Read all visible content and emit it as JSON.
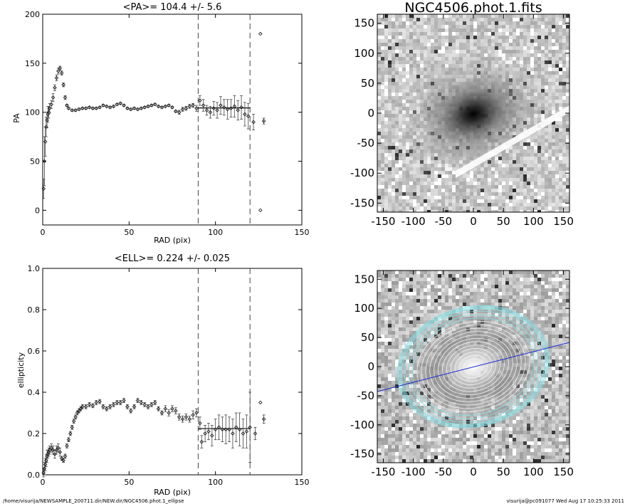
{
  "chart_data": [
    {
      "id": "pa",
      "type": "scatter",
      "title": "<PA>= 104.4 +/-   5.6",
      "xlabel": "RAD (pix)",
      "ylabel": "PA",
      "xlim": [
        0,
        150
      ],
      "ylim": [
        -15,
        200
      ],
      "xticks": [
        0,
        50,
        100,
        150
      ],
      "yticks": [
        0,
        50,
        100,
        150,
        200
      ],
      "vlines": [
        90,
        120
      ],
      "mean_segment": {
        "x": [
          90,
          120
        ],
        "y": 104.4
      },
      "series": [
        {
          "values": [
            {
              "x": 0.5,
              "y": 22,
              "err": 10
            },
            {
              "x": 1,
              "y": 50,
              "err": 25
            },
            {
              "x": 1.5,
              "y": 70,
              "err": 15
            },
            {
              "x": 2,
              "y": 85,
              "err": 10
            },
            {
              "x": 2.5,
              "y": 92,
              "err": 8
            },
            {
              "x": 3,
              "y": 98,
              "err": 8
            },
            {
              "x": 3.5,
              "y": 100,
              "err": 6
            },
            {
              "x": 4,
              "y": 104,
              "err": 5
            },
            {
              "x": 5,
              "y": 108,
              "err": 4
            },
            {
              "x": 6,
              "y": 115,
              "err": 4
            },
            {
              "x": 7,
              "y": 125,
              "err": 3
            },
            {
              "x": 8,
              "y": 135,
              "err": 3
            },
            {
              "x": 9,
              "y": 142,
              "err": 3
            },
            {
              "x": 10,
              "y": 145,
              "err": 2
            },
            {
              "x": 11,
              "y": 140,
              "err": 2
            },
            {
              "x": 12,
              "y": 128,
              "err": 2
            },
            {
              "x": 13,
              "y": 115,
              "err": 2
            },
            {
              "x": 14,
              "y": 107,
              "err": 1
            },
            {
              "x": 15,
              "y": 104,
              "err": 1
            },
            {
              "x": 17,
              "y": 102,
              "err": 1
            },
            {
              "x": 19,
              "y": 102,
              "err": 1
            },
            {
              "x": 21,
              "y": 103,
              "err": 1
            },
            {
              "x": 23,
              "y": 104,
              "err": 1
            },
            {
              "x": 25,
              "y": 104,
              "err": 1
            },
            {
              "x": 27,
              "y": 105,
              "err": 1
            },
            {
              "x": 29,
              "y": 104,
              "err": 1
            },
            {
              "x": 31,
              "y": 104,
              "err": 1
            },
            {
              "x": 33,
              "y": 105,
              "err": 1
            },
            {
              "x": 35,
              "y": 107,
              "err": 1
            },
            {
              "x": 37,
              "y": 106,
              "err": 1
            },
            {
              "x": 39,
              "y": 105,
              "err": 1
            },
            {
              "x": 41,
              "y": 106,
              "err": 1
            },
            {
              "x": 43,
              "y": 108,
              "err": 1
            },
            {
              "x": 45,
              "y": 109,
              "err": 1
            },
            {
              "x": 47,
              "y": 107,
              "err": 1
            },
            {
              "x": 49,
              "y": 104,
              "err": 1
            },
            {
              "x": 51,
              "y": 103,
              "err": 1
            },
            {
              "x": 53,
              "y": 104,
              "err": 1
            },
            {
              "x": 55,
              "y": 103,
              "err": 1
            },
            {
              "x": 57,
              "y": 104,
              "err": 1
            },
            {
              "x": 59,
              "y": 105,
              "err": 1
            },
            {
              "x": 61,
              "y": 106,
              "err": 1
            },
            {
              "x": 63,
              "y": 107,
              "err": 1
            },
            {
              "x": 65,
              "y": 108,
              "err": 1
            },
            {
              "x": 67,
              "y": 106,
              "err": 1
            },
            {
              "x": 69,
              "y": 105,
              "err": 1
            },
            {
              "x": 71,
              "y": 106,
              "err": 1
            },
            {
              "x": 73,
              "y": 107,
              "err": 1
            },
            {
              "x": 75,
              "y": 105,
              "err": 1
            },
            {
              "x": 77,
              "y": 101,
              "err": 1
            },
            {
              "x": 79,
              "y": 100,
              "err": 2
            },
            {
              "x": 81,
              "y": 103,
              "err": 2
            },
            {
              "x": 83,
              "y": 104,
              "err": 2
            },
            {
              "x": 85,
              "y": 106,
              "err": 2
            },
            {
              "x": 87,
              "y": 107,
              "err": 2
            },
            {
              "x": 89,
              "y": 104,
              "err": 3
            },
            {
              "x": 91,
              "y": 112,
              "err": 5
            },
            {
              "x": 93,
              "y": 107,
              "err": 6
            },
            {
              "x": 95,
              "y": 102,
              "err": 5
            },
            {
              "x": 97,
              "y": 100,
              "err": 6
            },
            {
              "x": 99,
              "y": 104,
              "err": 7
            },
            {
              "x": 101,
              "y": 102,
              "err": 8
            },
            {
              "x": 103,
              "y": 107,
              "err": 9
            },
            {
              "x": 105,
              "y": 105,
              "err": 8
            },
            {
              "x": 107,
              "y": 103,
              "err": 10
            },
            {
              "x": 109,
              "y": 104,
              "err": 9
            },
            {
              "x": 111,
              "y": 106,
              "err": 11
            },
            {
              "x": 113,
              "y": 102,
              "err": 10
            },
            {
              "x": 115,
              "y": 105,
              "err": 12
            },
            {
              "x": 117,
              "y": 98,
              "err": 12
            },
            {
              "x": 119,
              "y": 96,
              "err": 13
            },
            {
              "x": 122,
              "y": 90,
              "err": 8
            },
            {
              "x": 126,
              "y": 180,
              "err": 0
            },
            {
              "x": 126,
              "y": 0,
              "err": 0
            },
            {
              "x": 128,
              "y": 91,
              "err": 3
            }
          ]
        }
      ]
    },
    {
      "id": "ell",
      "type": "scatter",
      "title": "<ELL>= 0.224 +/-  0.025",
      "xlabel": "RAD (pix)",
      "ylabel": "ellipticity",
      "xlim": [
        0,
        150
      ],
      "ylim": [
        0,
        1
      ],
      "xticks": [
        0,
        50,
        100,
        150
      ],
      "yticks": [
        0,
        0.2,
        0.4,
        0.6,
        0.8,
        1.0
      ],
      "ytick_labels": [
        "0.0",
        "0.2",
        "0.4",
        "0.6",
        "0.8",
        "1.0"
      ],
      "vlines": [
        90,
        120
      ],
      "mean_segment": {
        "x": [
          90,
          120
        ],
        "y": 0.224
      },
      "series": [
        {
          "values": [
            {
              "x": 0.5,
              "y": 0.01,
              "err": 0.02
            },
            {
              "x": 1,
              "y": 0.03,
              "err": 0.03
            },
            {
              "x": 1.5,
              "y": 0.05,
              "err": 0.03
            },
            {
              "x": 2,
              "y": 0.07,
              "err": 0.03
            },
            {
              "x": 2.5,
              "y": 0.09,
              "err": 0.03
            },
            {
              "x": 3,
              "y": 0.1,
              "err": 0.02
            },
            {
              "x": 3.5,
              "y": 0.11,
              "err": 0.02
            },
            {
              "x": 4,
              "y": 0.12,
              "err": 0.02
            },
            {
              "x": 5,
              "y": 0.13,
              "err": 0.02
            },
            {
              "x": 6,
              "y": 0.12,
              "err": 0.02
            },
            {
              "x": 7,
              "y": 0.1,
              "err": 0.02
            },
            {
              "x": 8,
              "y": 0.12,
              "err": 0.02
            },
            {
              "x": 9,
              "y": 0.13,
              "err": 0.02
            },
            {
              "x": 10,
              "y": 0.11,
              "err": 0.02
            },
            {
              "x": 11,
              "y": 0.08,
              "err": 0.01
            },
            {
              "x": 12,
              "y": 0.07,
              "err": 0.01
            },
            {
              "x": 13,
              "y": 0.09,
              "err": 0.01
            },
            {
              "x": 14,
              "y": 0.14,
              "err": 0.01
            },
            {
              "x": 15,
              "y": 0.17,
              "err": 0.01
            },
            {
              "x": 16,
              "y": 0.2,
              "err": 0.01
            },
            {
              "x": 17,
              "y": 0.23,
              "err": 0.01
            },
            {
              "x": 18,
              "y": 0.26,
              "err": 0.01
            },
            {
              "x": 19,
              "y": 0.28,
              "err": 0.01
            },
            {
              "x": 20,
              "y": 0.3,
              "err": 0.01
            },
            {
              "x": 21,
              "y": 0.31,
              "err": 0.01
            },
            {
              "x": 22,
              "y": 0.32,
              "err": 0.01
            },
            {
              "x": 23,
              "y": 0.33,
              "err": 0.01
            },
            {
              "x": 25,
              "y": 0.33,
              "err": 0.01
            },
            {
              "x": 27,
              "y": 0.34,
              "err": 0.01
            },
            {
              "x": 29,
              "y": 0.335,
              "err": 0.01
            },
            {
              "x": 31,
              "y": 0.35,
              "err": 0.01
            },
            {
              "x": 33,
              "y": 0.355,
              "err": 0.01
            },
            {
              "x": 35,
              "y": 0.33,
              "err": 0.01
            },
            {
              "x": 37,
              "y": 0.32,
              "err": 0.01
            },
            {
              "x": 39,
              "y": 0.33,
              "err": 0.01
            },
            {
              "x": 41,
              "y": 0.34,
              "err": 0.01
            },
            {
              "x": 43,
              "y": 0.35,
              "err": 0.01
            },
            {
              "x": 45,
              "y": 0.35,
              "err": 0.01
            },
            {
              "x": 47,
              "y": 0.36,
              "err": 0.01
            },
            {
              "x": 49,
              "y": 0.33,
              "err": 0.01
            },
            {
              "x": 51,
              "y": 0.31,
              "err": 0.01
            },
            {
              "x": 53,
              "y": 0.33,
              "err": 0.01
            },
            {
              "x": 55,
              "y": 0.36,
              "err": 0.01
            },
            {
              "x": 57,
              "y": 0.35,
              "err": 0.01
            },
            {
              "x": 59,
              "y": 0.34,
              "err": 0.01
            },
            {
              "x": 61,
              "y": 0.33,
              "err": 0.01
            },
            {
              "x": 63,
              "y": 0.34,
              "err": 0.01
            },
            {
              "x": 65,
              "y": 0.35,
              "err": 0.01
            },
            {
              "x": 67,
              "y": 0.32,
              "err": 0.01
            },
            {
              "x": 69,
              "y": 0.3,
              "err": 0.01
            },
            {
              "x": 71,
              "y": 0.32,
              "err": 0.015
            },
            {
              "x": 73,
              "y": 0.3,
              "err": 0.015
            },
            {
              "x": 75,
              "y": 0.32,
              "err": 0.015
            },
            {
              "x": 77,
              "y": 0.31,
              "err": 0.015
            },
            {
              "x": 79,
              "y": 0.28,
              "err": 0.015
            },
            {
              "x": 81,
              "y": 0.27,
              "err": 0.015
            },
            {
              "x": 83,
              "y": 0.28,
              "err": 0.015
            },
            {
              "x": 85,
              "y": 0.27,
              "err": 0.015
            },
            {
              "x": 87,
              "y": 0.29,
              "err": 0.02
            },
            {
              "x": 89,
              "y": 0.3,
              "err": 0.02
            },
            {
              "x": 91,
              "y": 0.25,
              "err": 0.03
            },
            {
              "x": 92,
              "y": 0.16,
              "err": 0.03
            },
            {
              "x": 94,
              "y": 0.2,
              "err": 0.04
            },
            {
              "x": 96,
              "y": 0.21,
              "err": 0.04
            },
            {
              "x": 98,
              "y": 0.19,
              "err": 0.05
            },
            {
              "x": 100,
              "y": 0.22,
              "err": 0.05
            },
            {
              "x": 102,
              "y": 0.23,
              "err": 0.06
            },
            {
              "x": 104,
              "y": 0.22,
              "err": 0.06
            },
            {
              "x": 106,
              "y": 0.22,
              "err": 0.07
            },
            {
              "x": 108,
              "y": 0.22,
              "err": 0.06
            },
            {
              "x": 110,
              "y": 0.2,
              "err": 0.07
            },
            {
              "x": 112,
              "y": 0.23,
              "err": 0.07
            },
            {
              "x": 114,
              "y": 0.22,
              "err": 0.08
            },
            {
              "x": 116,
              "y": 0.2,
              "err": 0.07
            },
            {
              "x": 118,
              "y": 0.21,
              "err": 0.08
            },
            {
              "x": 120,
              "y": 0.23,
              "err": 0.17
            },
            {
              "x": 123,
              "y": 0.2,
              "err": 0.03
            },
            {
              "x": 126,
              "y": 0.35,
              "err": 0
            },
            {
              "x": 128,
              "y": 0.27,
              "err": 0.02
            }
          ]
        }
      ]
    },
    {
      "id": "img_top",
      "type": "heatmap",
      "title": "NGC4506.phot.1.fits",
      "xlim": [
        -160,
        160
      ],
      "ylim": [
        -165,
        165
      ],
      "xticks": [
        -150,
        -100,
        -50,
        0,
        50,
        100,
        150
      ],
      "yticks": [
        -150,
        -100,
        -50,
        0,
        50,
        100,
        150
      ]
    },
    {
      "id": "img_bottom",
      "type": "heatmap",
      "title": "",
      "xlim": [
        -160,
        160
      ],
      "ylim": [
        -165,
        165
      ],
      "xticks": [
        -150,
        -100,
        -50,
        0,
        50,
        100,
        150
      ],
      "yticks": [
        -150,
        -100,
        -50,
        0,
        50,
        100,
        150
      ],
      "major_axis_line_color": "#1a2bd6",
      "isophote_color": "#7fe0e6"
    }
  ],
  "footer": {
    "left": "/home/visurija/NEWSAMPLE_200711.dir/NEW.dir/NGC4506.phot.1_ellipse",
    "right": "visurija@pc091077  Wed Aug 17 10:25:33 2011"
  }
}
